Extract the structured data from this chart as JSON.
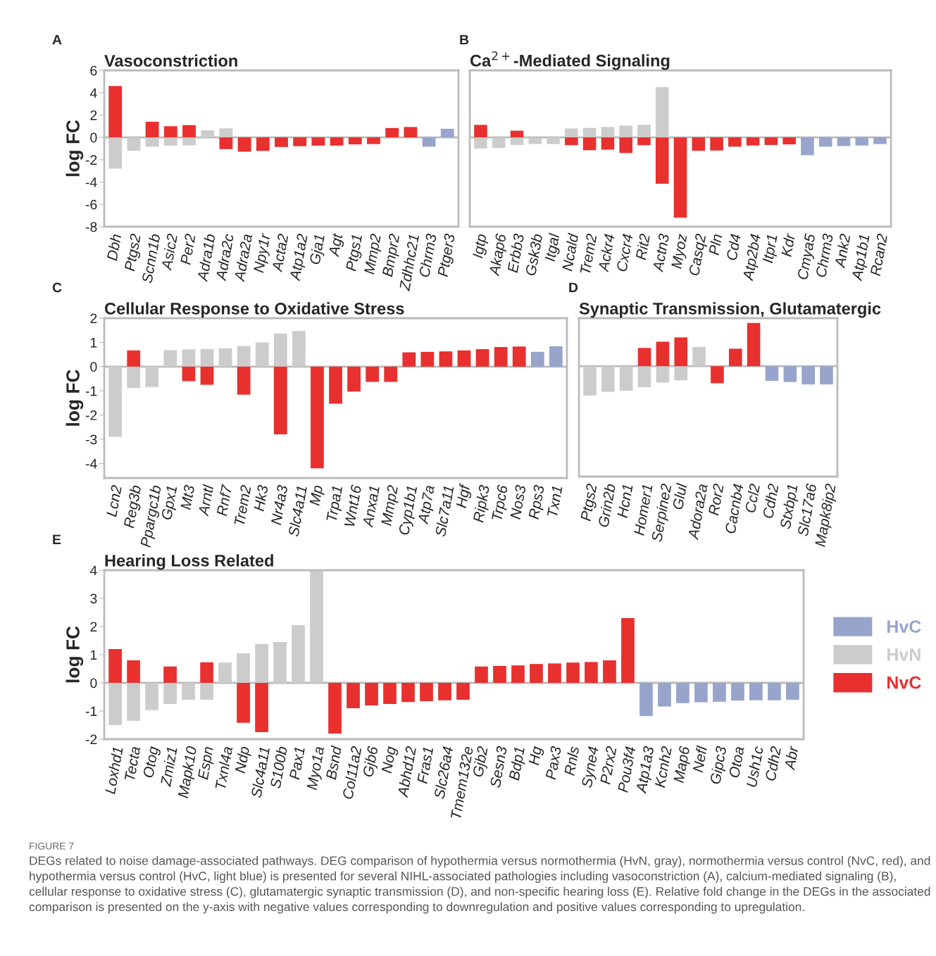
{
  "chart_data": [
    {
      "type": "bar",
      "title": "Vasoconstriction",
      "ylabel": "log FC",
      "annotations": [
        "A"
      ],
      "ylim": [
        -8,
        6
      ],
      "yticks": [
        -8,
        -6,
        -4,
        -2,
        0,
        2,
        4,
        6
      ],
      "ref_lines": [
        {
          "axis": "y",
          "value": 0,
          "color": "#bbbbbb"
        }
      ],
      "categories": [
        "Dbh",
        "Ptgs2",
        "Scnn1b",
        "Asic2",
        "Per2",
        "Adra1b",
        "Adra2c",
        "Adra2a",
        "Npy1r",
        "Acta2",
        "Atp1a2",
        "Gja1",
        "Agt",
        "Ptgs1",
        "Mmp2",
        "Bmpr2",
        "Zdhhc21",
        "Chrm3",
        "Ptger3"
      ],
      "series": [
        {
          "color": "#97a5cc",
          "values": [
            null,
            null,
            null,
            null,
            null,
            null,
            null,
            null,
            null,
            null,
            null,
            null,
            null,
            null,
            null,
            null,
            null,
            -0.84,
            0.77
          ]
        },
        {
          "color": "#cccccc",
          "values": [
            -2.8,
            -1.2,
            -0.84,
            -0.74,
            -0.72,
            0.63,
            0.81,
            null,
            null,
            null,
            null,
            null,
            null,
            null,
            null,
            null,
            null,
            null,
            null
          ]
        },
        {
          "color": "#e8302f",
          "values": [
            4.6,
            null,
            1.4,
            1.0,
            1.1,
            null,
            -1.05,
            -1.28,
            -1.21,
            -0.86,
            -0.79,
            -0.74,
            -0.74,
            -0.63,
            -0.6,
            0.84,
            0.93,
            null,
            null
          ]
        }
      ]
    },
    {
      "type": "bar",
      "title": "Ca$^{2+}$-Mediated Signaling",
      "annotations": [
        "B"
      ],
      "ylim": [
        -8,
        6
      ],
      "yticks": [
        -8,
        -6,
        -4,
        -2,
        0,
        2,
        4,
        6
      ],
      "tick_labels": "x",
      "ref_lines": [
        {
          "axis": "y",
          "value": 0,
          "color": "#bbbbbb"
        }
      ],
      "categories": [
        "Igtp",
        "Akap6",
        "Erbb3",
        "Gsk3b",
        "Itgal",
        "Ncald",
        "Trem2",
        "Ackr4",
        "Cxcr4",
        "Rit2",
        "Actn3",
        "Myoz",
        "Casq2",
        "Pln",
        "Cd4",
        "Atp2b4",
        "Itpr1",
        "Kdr",
        "Cmya5",
        "Chrm3",
        "Ank2",
        "Atp1b1",
        "Rcan2"
      ],
      "series": [
        {
          "color": "#97a5cc",
          "values": [
            null,
            null,
            null,
            null,
            null,
            null,
            null,
            null,
            null,
            null,
            null,
            null,
            null,
            null,
            null,
            null,
            null,
            null,
            -1.6,
            -0.83,
            -0.78,
            -0.73,
            -0.6
          ]
        },
        {
          "color": "#cccccc",
          "values": [
            -1.0,
            -0.95,
            -0.68,
            -0.6,
            -0.6,
            0.8,
            0.85,
            0.93,
            1.05,
            1.12,
            4.5,
            null,
            null,
            null,
            null,
            null,
            null,
            null,
            null,
            null,
            null,
            null,
            null
          ]
        },
        {
          "color": "#e8302f",
          "values": [
            1.12,
            null,
            0.6,
            null,
            null,
            -0.7,
            -1.15,
            -1.1,
            -1.4,
            -0.7,
            -4.15,
            -7.2,
            -1.2,
            -1.18,
            -0.83,
            -0.73,
            -0.68,
            -0.63,
            null,
            null,
            null,
            null,
            null
          ]
        }
      ]
    },
    {
      "type": "bar",
      "title": "Cellular Response to Oxidative Stress",
      "ylabel": "log FC",
      "annotations": [
        "C"
      ],
      "ylim": [
        -4.6,
        2
      ],
      "yticks": [
        -4,
        -3,
        -2,
        -1,
        0,
        1,
        2
      ],
      "ref_lines": [
        {
          "axis": "y",
          "value": 0,
          "color": "#bbbbbb"
        }
      ],
      "categories": [
        "Lcn2",
        "Reg3b",
        "Ppargc1b",
        "Gpx1",
        "Mt3",
        "Arntl",
        "Rnf7",
        "Trem2",
        "Hk3",
        "Nr4a3",
        "Slc4a11",
        "Mp",
        "Trpa1",
        "Wnt16",
        "Anxa1",
        "Mmp2",
        "Cyp1b1",
        "Atp7a",
        "Slc7a11",
        "Hgf",
        "Ripk3",
        "Trpc6",
        "Nos3",
        "Rps3",
        "Txn1"
      ],
      "series": [
        {
          "color": "#97a5cc",
          "values": [
            null,
            null,
            null,
            null,
            null,
            null,
            null,
            null,
            null,
            null,
            null,
            null,
            null,
            null,
            null,
            null,
            null,
            null,
            null,
            null,
            null,
            null,
            null,
            0.61,
            0.84
          ]
        },
        {
          "color": "#cccccc",
          "values": [
            -2.9,
            -0.88,
            -0.84,
            0.68,
            0.71,
            0.73,
            0.76,
            0.85,
            1.0,
            1.37,
            1.47,
            null,
            null,
            null,
            null,
            null,
            null,
            null,
            null,
            null,
            null,
            null,
            null,
            null,
            null
          ]
        },
        {
          "color": "#e8302f",
          "values": [
            null,
            0.67,
            null,
            null,
            -0.6,
            -0.75,
            null,
            -1.16,
            null,
            -2.8,
            null,
            -4.2,
            -1.53,
            -1.03,
            -0.63,
            -0.63,
            0.59,
            0.61,
            0.63,
            0.67,
            0.72,
            0.81,
            0.83,
            null,
            null
          ]
        }
      ]
    },
    {
      "type": "bar",
      "title": "Synaptic Transmission, Glutamatergic",
      "annotations": [
        "D"
      ],
      "ylim": [
        -4.6,
        2
      ],
      "yticks": [
        -4,
        -3,
        -2,
        -1,
        0,
        1,
        2
      ],
      "tick_labels": "x",
      "ref_lines": [
        {
          "axis": "y",
          "value": 0,
          "color": "#bbbbbb"
        }
      ],
      "categories": [
        "Ptgs2",
        "Grin2b",
        "Hcn1",
        "Homer1",
        "Serpine2",
        "Glul",
        "Adora2a",
        "Ror2",
        "Cacnb4",
        "Ccl2",
        "Cdh2",
        "Stxbp1",
        "Slc17a6",
        "Mapk8ip2"
      ],
      "series": [
        {
          "color": "#97a5cc",
          "values": [
            null,
            null,
            null,
            null,
            null,
            null,
            null,
            null,
            null,
            null,
            -0.61,
            -0.66,
            -0.76,
            -0.76
          ]
        },
        {
          "color": "#cccccc",
          "values": [
            -1.22,
            -1.07,
            -1.02,
            -0.88,
            -0.68,
            -0.59,
            0.8,
            null,
            null,
            null,
            null,
            null,
            null,
            null
          ]
        },
        {
          "color": "#e8302f",
          "values": [
            null,
            null,
            null,
            0.76,
            1.02,
            1.2,
            null,
            -0.71,
            0.73,
            1.8,
            null,
            null,
            null,
            null
          ]
        }
      ]
    },
    {
      "type": "bar",
      "title": "Hearing Loss Related",
      "ylabel": "log FC",
      "annotations": [
        "E"
      ],
      "ylim": [
        -2,
        4
      ],
      "yticks": [
        -2,
        -1,
        0,
        1,
        2,
        3,
        4
      ],
      "legend": "right",
      "ref_lines": [
        {
          "axis": "y",
          "value": 0,
          "color": "#bbbbbb"
        }
      ],
      "categories": [
        "Loxhd1",
        "Tecta",
        "Otog",
        "Zmiz1",
        "Mapk10",
        "Espn",
        "Txnl4a",
        "Ndp",
        "Slc4a11",
        "S100b",
        "Pax1",
        "Myo1a",
        "Bsnd",
        "Col11a2",
        "Gjb6",
        "Nog",
        "Abhd12",
        "Fras1",
        "Slc26a4",
        "Tmem132e",
        "Gjb2",
        "Sesn3",
        "Bdp1",
        "Hg",
        "Pax3",
        "Rnls",
        "Syne4",
        "P2rx2",
        "Pou3f4",
        "Atp1a3",
        "Kcnh2",
        "Map6",
        "Nefl",
        "Gipc3",
        "Otoa",
        "Ush1c",
        "Cdh2",
        "Abr"
      ],
      "series": [
        {
          "name": "HvC",
          "color": "#97a5cc",
          "values": [
            null,
            null,
            null,
            null,
            null,
            null,
            null,
            null,
            null,
            null,
            null,
            null,
            null,
            null,
            null,
            null,
            null,
            null,
            null,
            null,
            null,
            null,
            null,
            null,
            null,
            null,
            null,
            null,
            null,
            -1.18,
            -0.84,
            -0.72,
            -0.69,
            -0.67,
            -0.63,
            -0.62,
            -0.62,
            -0.6
          ]
        },
        {
          "name": "HvN",
          "color": "#cccccc",
          "values": [
            -1.5,
            -1.35,
            -0.97,
            -0.75,
            -0.6,
            -0.6,
            0.72,
            1.05,
            1.38,
            1.45,
            2.05,
            4.0,
            null,
            null,
            null,
            null,
            null,
            null,
            null,
            null,
            null,
            null,
            null,
            null,
            null,
            null,
            null,
            null,
            null,
            null,
            null,
            null,
            null,
            null,
            null,
            null,
            null,
            null
          ]
        },
        {
          "name": "NvC",
          "color": "#e8302f",
          "values": [
            1.2,
            0.8,
            null,
            0.58,
            null,
            0.73,
            null,
            -1.42,
            -1.75,
            null,
            null,
            null,
            -1.8,
            -0.9,
            -0.8,
            -0.75,
            -0.68,
            -0.65,
            -0.62,
            -0.6,
            0.58,
            0.6,
            0.62,
            0.67,
            0.69,
            0.72,
            0.74,
            0.8,
            2.3,
            null,
            null,
            null,
            null,
            null,
            null,
            null,
            null,
            null
          ]
        }
      ]
    },
    {
      "type": "other",
      "title": "FIGURE 7",
      "annotations": [
        "DEGs related to noise damage-associated pathways. DEG comparison of hypothermia versus normothermia (HvN, gray), normothermia versus control (NvC, red), and hypothermia versus control (HvC, light blue) is presented for several NIHL-associated pathologies including vasoconstriction (A), calcium-mediated signaling (B), cellular response to oxidative stress (C), glutamatergic synaptic transmission (D), and non-specific hearing loss (E). Relative fold change in the DEGs in the associated comparison is presented on the y-axis with negative values corresponding to downregulation and positive values corresponding to upregulation."
      ]
    }
  ]
}
